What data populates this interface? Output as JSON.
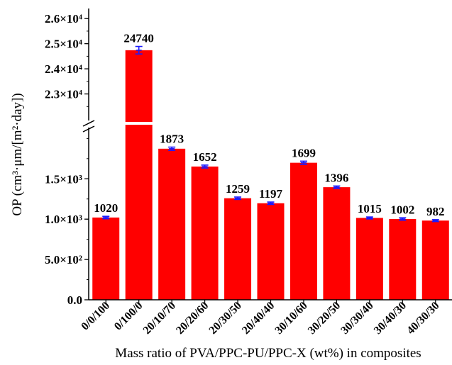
{
  "chart_data": {
    "type": "bar",
    "title": "",
    "xlabel": "Mass ratio of PVA/PPC-PU/PPC-X (wt%) in composites",
    "ylabel": "OP (cm³·μm/[m²·day])",
    "categories": [
      "0/0/100",
      "0/100/0",
      "20/10/70",
      "20/20/60",
      "20/30/50",
      "20/40/40",
      "30/10/60",
      "30/20/50",
      "30/30/40",
      "30/40/30",
      "40/30/30"
    ],
    "values": [
      1020,
      24740,
      1873,
      1652,
      1259,
      1197,
      1699,
      1396,
      1015,
      1002,
      982
    ],
    "data_labels": [
      "1020",
      "24740",
      "1873",
      "1652",
      "1259",
      "1197",
      "1699",
      "1396",
      "1015",
      "1002",
      "982"
    ],
    "errors": [
      15,
      150,
      20,
      18,
      15,
      15,
      20,
      15,
      12,
      15,
      12
    ],
    "axis_break": {
      "lower_range": [
        0,
        2100
      ],
      "upper_range": [
        22000,
        26400
      ]
    },
    "y_ticks_lower": [
      {
        "value": 0,
        "label": "0.0"
      },
      {
        "value": 500,
        "label": "5.0×10²"
      },
      {
        "value": 1000,
        "label": "1.0×10³"
      },
      {
        "value": 1500,
        "label": "1.5×10³"
      }
    ],
    "y_ticks_upper": [
      {
        "value": 23000,
        "label": "2.3×10⁴"
      },
      {
        "value": 24000,
        "label": "2.4×10⁴"
      },
      {
        "value": 25000,
        "label": "2.5×10⁴"
      },
      {
        "value": 26000,
        "label": "2.6×10⁴"
      }
    ],
    "bar_color": "#ff0000",
    "error_color": "#1a1aff",
    "grid": false,
    "legend": "none"
  }
}
